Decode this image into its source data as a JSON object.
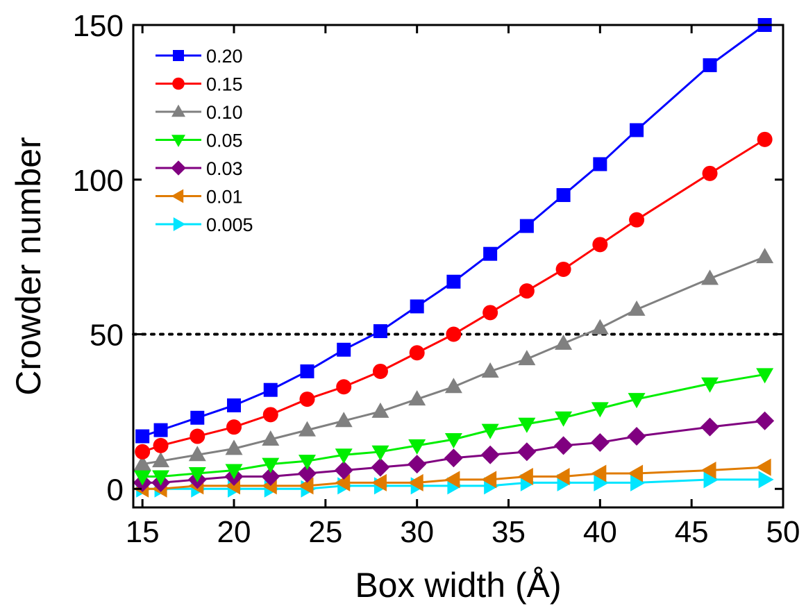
{
  "chart_data": {
    "type": "line",
    "title": "",
    "xlabel": "Box width (Å)",
    "ylabel": "Crowder number",
    "xlim": [
      14.5,
      50
    ],
    "ylim": [
      -6,
      150
    ],
    "xticks": [
      15,
      20,
      25,
      30,
      35,
      40,
      45,
      50
    ],
    "yticks": [
      0,
      50,
      100,
      150
    ],
    "grid": false,
    "legend_position": "top-left",
    "reference_line": {
      "y": 50,
      "style": "dotted",
      "color": "#000000"
    },
    "x": [
      15,
      16,
      18,
      20,
      22,
      24,
      26,
      28,
      30,
      32,
      34,
      36,
      38,
      40,
      42,
      46,
      49
    ],
    "series": [
      {
        "name": "0.20",
        "color": "#0000ff",
        "marker": "square",
        "values": [
          17,
          19,
          23,
          27,
          32,
          38,
          45,
          51,
          59,
          67,
          76,
          85,
          95,
          105,
          116,
          137,
          150
        ]
      },
      {
        "name": "0.15",
        "color": "#ff0000",
        "marker": "circle",
        "values": [
          12,
          14,
          17,
          20,
          24,
          29,
          33,
          38,
          44,
          50,
          57,
          64,
          71,
          79,
          87,
          102,
          113
        ]
      },
      {
        "name": "0.10",
        "color": "#808080",
        "marker": "triangle-up",
        "values": [
          8,
          9,
          11,
          13,
          16,
          19,
          22,
          25,
          29,
          33,
          38,
          42,
          47,
          52,
          58,
          68,
          75
        ]
      },
      {
        "name": "0.05",
        "color": "#00ee00",
        "marker": "triangle-down",
        "values": [
          4,
          4,
          5,
          6,
          8,
          9,
          11,
          12,
          14,
          16,
          19,
          21,
          23,
          26,
          29,
          34,
          37
        ]
      },
      {
        "name": "0.03",
        "color": "#800080",
        "marker": "diamond",
        "values": [
          2,
          2,
          3,
          4,
          4,
          5,
          6,
          7,
          8,
          10,
          11,
          12,
          14,
          15,
          17,
          20,
          22
        ]
      },
      {
        "name": "0.01",
        "color": "#e07b00",
        "marker": "triangle-left",
        "values": [
          0,
          0,
          1,
          1,
          1,
          1,
          2,
          2,
          2,
          3,
          3,
          4,
          4,
          5,
          5,
          6,
          7
        ]
      },
      {
        "name": "0.005",
        "color": "#00e5ff",
        "marker": "triangle-right",
        "values": [
          0,
          0,
          0,
          0,
          0,
          0,
          1,
          1,
          1,
          1,
          1,
          2,
          2,
          2,
          2,
          3,
          3
        ]
      }
    ]
  }
}
